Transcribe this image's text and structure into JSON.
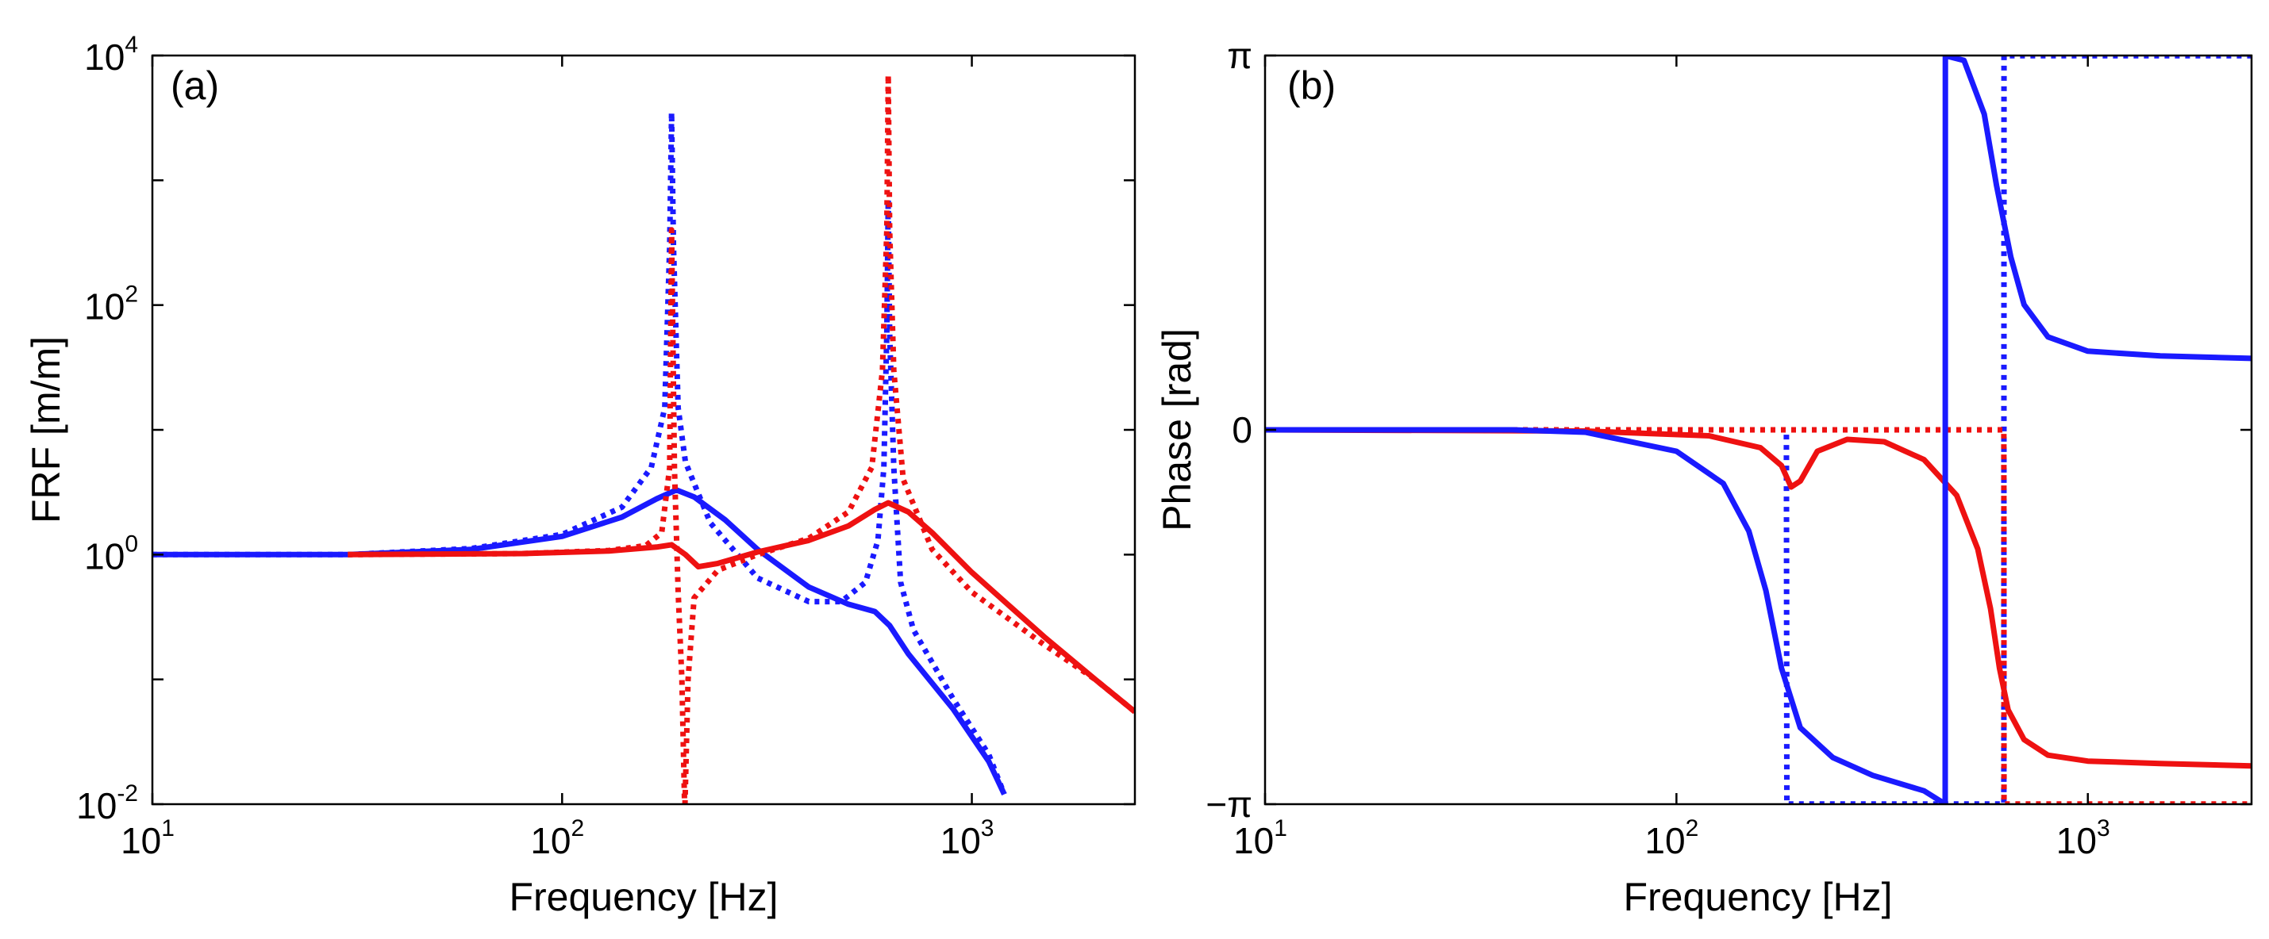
{
  "colors": {
    "system_a": "#1a1aff",
    "system_b": "#ee1111"
  },
  "chart_data": [
    {
      "type": "line",
      "panel_label": "(a)",
      "xlabel": "Frequency [Hz]",
      "ylabel": "FRF [m/m]",
      "xscale": "log",
      "yscale": "log",
      "xlim": [
        10,
        2500
      ],
      "ylim": [
        0.01,
        10000
      ],
      "x_ticks": [
        {
          "base": "10",
          "exp": "1"
        },
        {
          "base": "10",
          "exp": "2"
        },
        {
          "base": "10",
          "exp": "3"
        }
      ],
      "y_ticks": [
        {
          "base": "10",
          "exp": "-2"
        },
        {
          "base": "10",
          "exp": "0"
        },
        {
          "base": "10",
          "exp": "2"
        },
        {
          "base": "10",
          "exp": "4"
        }
      ],
      "series": [
        {
          "name": "blue dotted",
          "color": "system_a",
          "style": "dotted",
          "points": [
            [
              10,
              1.0
            ],
            [
              30,
              1.0
            ],
            [
              60,
              1.12
            ],
            [
              100,
              1.45
            ],
            [
              140,
              2.4
            ],
            [
              165,
              5.0
            ],
            [
              178,
              15
            ],
            [
              183,
              300
            ],
            [
              185,
              3500
            ],
            [
              187,
              300
            ],
            [
              192,
              15
            ],
            [
              200,
              5.5
            ],
            [
              230,
              1.8
            ],
            [
              300,
              0.65
            ],
            [
              400,
              0.42
            ],
            [
              480,
              0.42
            ],
            [
              550,
              0.6
            ],
            [
              590,
              1.3
            ],
            [
              610,
              5
            ],
            [
              620,
              60
            ],
            [
              625,
              700
            ],
            [
              630,
              60
            ],
            [
              645,
              5
            ],
            [
              670,
              0.6
            ],
            [
              720,
              0.25
            ],
            [
              900,
              0.07
            ],
            [
              1100,
              0.025
            ],
            [
              1200,
              0.012
            ]
          ]
        },
        {
          "name": "blue solid",
          "color": "system_a",
          "style": "solid",
          "points": [
            [
              10,
              1.0
            ],
            [
              30,
              1.0
            ],
            [
              60,
              1.1
            ],
            [
              100,
              1.4
            ],
            [
              140,
              2.0
            ],
            [
              170,
              2.8
            ],
            [
              190,
              3.3
            ],
            [
              210,
              2.9
            ],
            [
              250,
              1.9
            ],
            [
              300,
              1.1
            ],
            [
              400,
              0.55
            ],
            [
              500,
              0.4
            ],
            [
              580,
              0.35
            ],
            [
              630,
              0.27
            ],
            [
              700,
              0.16
            ],
            [
              900,
              0.058
            ],
            [
              1100,
              0.022
            ],
            [
              1200,
              0.012
            ]
          ]
        },
        {
          "name": "red dotted",
          "color": "system_b",
          "style": "dotted",
          "points": [
            [
              30,
              1.0
            ],
            [
              80,
              1.02
            ],
            [
              130,
              1.08
            ],
            [
              160,
              1.18
            ],
            [
              175,
              1.5
            ],
            [
              183,
              5
            ],
            [
              185,
              400
            ],
            [
              188,
              5
            ],
            [
              192,
              0.5
            ],
            [
              196,
              0.1
            ],
            [
              199,
              0.01
            ],
            [
              199.5,
              0.01
            ],
            [
              203,
              0.1
            ],
            [
              210,
              0.45
            ],
            [
              240,
              0.75
            ],
            [
              300,
              1.0
            ],
            [
              400,
              1.35
            ],
            [
              500,
              2.2
            ],
            [
              570,
              5
            ],
            [
              605,
              30
            ],
            [
              620,
              400
            ],
            [
              625,
              7000
            ],
            [
              630,
              400
            ],
            [
              645,
              30
            ],
            [
              680,
              4
            ],
            [
              800,
              1.1
            ],
            [
              1000,
              0.5
            ],
            [
              1500,
              0.19
            ],
            [
              2000,
              0.1
            ],
            [
              2500,
              0.055
            ]
          ]
        },
        {
          "name": "red solid",
          "color": "system_b",
          "style": "solid",
          "points": [
            [
              30,
              1.0
            ],
            [
              80,
              1.02
            ],
            [
              130,
              1.07
            ],
            [
              170,
              1.15
            ],
            [
              185,
              1.2
            ],
            [
              200,
              1.0
            ],
            [
              215,
              0.8
            ],
            [
              240,
              0.85
            ],
            [
              300,
              1.05
            ],
            [
              400,
              1.3
            ],
            [
              500,
              1.7
            ],
            [
              580,
              2.3
            ],
            [
              625,
              2.6
            ],
            [
              700,
              2.2
            ],
            [
              800,
              1.5
            ],
            [
              1000,
              0.72
            ],
            [
              1500,
              0.22
            ],
            [
              2000,
              0.1
            ],
            [
              2500,
              0.055
            ]
          ]
        }
      ]
    },
    {
      "type": "line",
      "panel_label": "(b)",
      "xlabel": "Frequency [Hz]",
      "ylabel": "Phase [rad]",
      "xscale": "log",
      "yscale": "linear",
      "xlim": [
        10,
        2500
      ],
      "ylim": [
        -3.14159,
        3.14159
      ],
      "x_ticks": [
        {
          "base": "10",
          "exp": "1"
        },
        {
          "base": "10",
          "exp": "2"
        },
        {
          "base": "10",
          "exp": "3"
        }
      ],
      "y_ticks": [
        {
          "label": "−π",
          "value": -3.14159
        },
        {
          "label": "0",
          "value": 0
        },
        {
          "label": "π",
          "value": 3.14159
        }
      ],
      "series": [
        {
          "name": "blue dotted",
          "color": "system_a",
          "style": "dotted",
          "points": [
            [
              10,
              0
            ],
            [
              185,
              0
            ],
            [
              185.5,
              -3.14
            ],
            [
              625,
              -3.14
            ],
            [
              625.5,
              3.14
            ],
            [
              2500,
              3.14
            ]
          ]
        },
        {
          "name": "red dotted",
          "color": "system_b",
          "style": "dotted",
          "points": [
            [
              10,
              0
            ],
            [
              625,
              0
            ],
            [
              625.5,
              -3.14
            ],
            [
              2500,
              -3.14
            ]
          ]
        },
        {
          "name": "red solid",
          "color": "system_b",
          "style": "solid",
          "points": [
            [
              10,
              0
            ],
            [
              60,
              -0.01
            ],
            [
              120,
              -0.05
            ],
            [
              160,
              -0.15
            ],
            [
              180,
              -0.3
            ],
            [
              190,
              -0.48
            ],
            [
              200,
              -0.43
            ],
            [
              220,
              -0.18
            ],
            [
              260,
              -0.08
            ],
            [
              320,
              -0.1
            ],
            [
              400,
              -0.25
            ],
            [
              480,
              -0.55
            ],
            [
              540,
              -1.0
            ],
            [
              580,
              -1.5
            ],
            [
              610,
              -2.0
            ],
            [
              640,
              -2.35
            ],
            [
              700,
              -2.6
            ],
            [
              800,
              -2.73
            ],
            [
              1000,
              -2.78
            ],
            [
              1500,
              -2.8
            ],
            [
              2500,
              -2.82
            ]
          ]
        },
        {
          "name": "blue solid",
          "color": "system_a",
          "style": "solid",
          "points": [
            [
              10,
              0
            ],
            [
              40,
              0
            ],
            [
              60,
              -0.02
            ],
            [
              100,
              -0.18
            ],
            [
              130,
              -0.45
            ],
            [
              150,
              -0.85
            ],
            [
              165,
              -1.35
            ],
            [
              180,
              -2.0
            ],
            [
              200,
              -2.5
            ],
            [
              240,
              -2.75
            ],
            [
              300,
              -2.9
            ],
            [
              400,
              -3.03
            ],
            [
              450,
              -3.14
            ],
            [
              450.5,
              3.14
            ],
            [
              500,
              3.1
            ],
            [
              560,
              2.65
            ],
            [
              600,
              2.05
            ],
            [
              650,
              1.45
            ],
            [
              700,
              1.05
            ],
            [
              800,
              0.78
            ],
            [
              1000,
              0.66
            ],
            [
              1500,
              0.62
            ],
            [
              2500,
              0.6
            ]
          ]
        }
      ]
    }
  ]
}
